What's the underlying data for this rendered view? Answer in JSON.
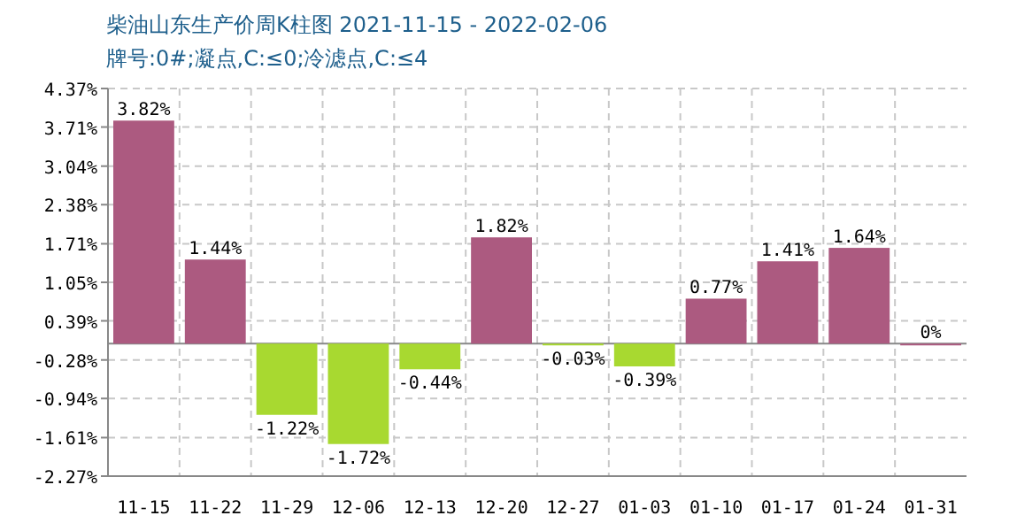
{
  "chart_data": {
    "type": "bar",
    "title": "柴油山东生产价周K柱图  2021-11-15 - 2022-02-06",
    "subtitle": "牌号:0#;凝点,C:≤0;冷滤点,C:≤4",
    "categories": [
      "11-15",
      "11-22",
      "11-29",
      "12-06",
      "12-13",
      "12-20",
      "12-27",
      "01-03",
      "01-10",
      "01-17",
      "01-24",
      "01-31"
    ],
    "values": [
      3.82,
      1.44,
      -1.22,
      -1.72,
      -0.44,
      1.82,
      -0.03,
      -0.39,
      0.77,
      1.41,
      1.64,
      0
    ],
    "colors": [
      "#ac5a80",
      "#ac5a80",
      "#a8d930",
      "#a8d930",
      "#a8d930",
      "#ac5a80",
      "#a8d930",
      "#a8d930",
      "#ac5a80",
      "#ac5a80",
      "#ac5a80",
      "#ac5a80"
    ],
    "value_labels": [
      "3.82%",
      "1.44%",
      "-1.22%",
      "-1.72%",
      "-0.44%",
      "1.82%",
      "-0.03%",
      "-0.39%",
      "0.77%",
      "1.41%",
      "1.64%",
      "0%"
    ],
    "ylim": [
      -2.27,
      4.37
    ],
    "yticks": [
      {
        "value": 4.37,
        "label": "4.37%"
      },
      {
        "value": 3.71,
        "label": "3.71%"
      },
      {
        "value": 3.04,
        "label": "3.04%"
      },
      {
        "value": 2.38,
        "label": "2.38%"
      },
      {
        "value": 1.71,
        "label": "1.71%"
      },
      {
        "value": 1.05,
        "label": "1.05%"
      },
      {
        "value": 0.39,
        "label": "0.39%"
      },
      {
        "value": -0.28,
        "label": "-0.28%"
      },
      {
        "value": -0.94,
        "label": "-0.94%"
      },
      {
        "value": -1.61,
        "label": "-1.61%"
      },
      {
        "value": -2.27,
        "label": "-2.27%"
      }
    ],
    "grid": true
  }
}
